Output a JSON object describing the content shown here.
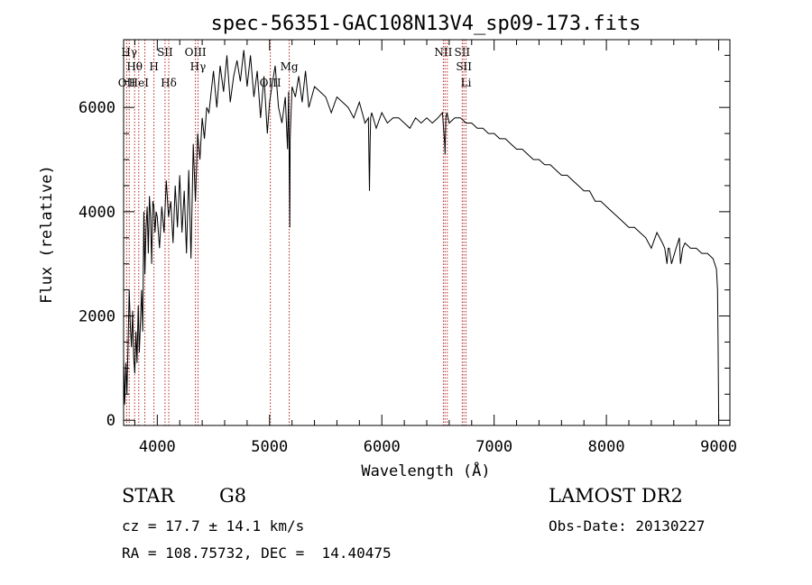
{
  "chart_data": {
    "type": "line",
    "title": "spec-56351-GAC108N13V4_sp09-173.fits",
    "xlabel": "Wavelength (Å)",
    "ylabel": "Flux (relative)",
    "xlim": [
      3700,
      9100
    ],
    "ylim": [
      -100,
      7300
    ],
    "xticks": [
      4000,
      5000,
      6000,
      7000,
      8000,
      9000
    ],
    "yticks": [
      0,
      2000,
      4000,
      6000
    ],
    "grid": false,
    "series": [
      {
        "x": [
          3700,
          3710,
          3720,
          3730,
          3740,
          3750,
          3760,
          3770,
          3780,
          3790,
          3800,
          3810,
          3820,
          3830,
          3840,
          3850,
          3860,
          3870,
          3880,
          3890,
          3900,
          3910,
          3920,
          3930,
          3940,
          3950,
          3960,
          3970,
          3980,
          3990,
          4000,
          4020,
          4040,
          4060,
          4080,
          4100,
          4120,
          4140,
          4160,
          4180,
          4200,
          4220,
          4240,
          4260,
          4280,
          4300,
          4320,
          4340,
          4360,
          4380,
          4400,
          4420,
          4440,
          4460,
          4480,
          4500,
          4530,
          4560,
          4590,
          4620,
          4650,
          4680,
          4710,
          4740,
          4770,
          4800,
          4830,
          4860,
          4890,
          4920,
          4950,
          4980,
          5000,
          5020,
          5050,
          5080,
          5110,
          5140,
          5160,
          5170,
          5180,
          5183,
          5190,
          5200,
          5230,
          5260,
          5290,
          5320,
          5350,
          5400,
          5450,
          5500,
          5550,
          5600,
          5650,
          5700,
          5750,
          5800,
          5850,
          5880,
          5890,
          5895,
          5900,
          5910,
          5950,
          6000,
          6050,
          6100,
          6150,
          6200,
          6250,
          6300,
          6350,
          6400,
          6450,
          6500,
          6540,
          6560,
          6563,
          6570,
          6580,
          6600,
          6650,
          6700,
          6750,
          6800,
          6850,
          6900,
          6950,
          7000,
          7050,
          7100,
          7150,
          7200,
          7250,
          7300,
          7350,
          7400,
          7450,
          7500,
          7550,
          7600,
          7650,
          7700,
          7750,
          7800,
          7850,
          7900,
          7950,
          8000,
          8050,
          8100,
          8150,
          8200,
          8250,
          8300,
          8350,
          8400,
          8450,
          8500,
          8520,
          8540,
          8550,
          8560,
          8580,
          8620,
          8650,
          8660,
          8680,
          8700,
          8750,
          8800,
          8850,
          8900,
          8950,
          8980,
          8990,
          8995,
          9000
        ],
        "y": [
          1200,
          300,
          1100,
          500,
          1500,
          2500,
          1800,
          1400,
          2100,
          1200,
          900,
          1700,
          1100,
          2200,
          1300,
          1900,
          2500,
          1700,
          4000,
          2800,
          3700,
          4100,
          3200,
          4300,
          3900,
          3000,
          4200,
          4100,
          3600,
          4000,
          3900,
          3300,
          4100,
          3600,
          4600,
          3900,
          4200,
          3400,
          4500,
          3700,
          4700,
          3600,
          4400,
          3200,
          4800,
          3100,
          5300,
          4200,
          5500,
          5000,
          5800,
          5400,
          6000,
          5900,
          6300,
          6700,
          6000,
          6800,
          6300,
          7000,
          6100,
          6600,
          6900,
          6500,
          7100,
          6400,
          7000,
          6200,
          6700,
          5800,
          6600,
          5500,
          6100,
          6400,
          6800,
          6000,
          5700,
          6200,
          5200,
          6300,
          3700,
          5400,
          5800,
          6400,
          6200,
          6600,
          6100,
          6700,
          6000,
          6400,
          6300,
          6200,
          5900,
          6200,
          6100,
          6000,
          5800,
          6100,
          5700,
          5800,
          4400,
          5300,
          5800,
          5900,
          5600,
          5900,
          5700,
          5800,
          5800,
          5700,
          5600,
          5800,
          5700,
          5800,
          5700,
          5800,
          5900,
          5300,
          5100,
          5800,
          5900,
          5700,
          5800,
          5800,
          5700,
          5700,
          5600,
          5600,
          5500,
          5500,
          5400,
          5400,
          5300,
          5200,
          5200,
          5100,
          5000,
          5000,
          4900,
          4900,
          4800,
          4700,
          4700,
          4600,
          4500,
          4400,
          4400,
          4200,
          4200,
          4100,
          4000,
          3900,
          3800,
          3700,
          3700,
          3600,
          3500,
          3300,
          3600,
          3400,
          3300,
          3000,
          3300,
          3300,
          3000,
          3300,
          3500,
          3000,
          3300,
          3400,
          3300,
          3300,
          3200,
          3200,
          3100,
          2900,
          2500,
          1500,
          0
        ]
      }
    ],
    "line_markers": [
      {
        "x": 3727,
        "label": "OII",
        "row": 3
      },
      {
        "x": 3750,
        "label": "Hγ",
        "row": 1
      },
      {
        "x": 3798,
        "label": "Hθ",
        "row": 2
      },
      {
        "x": 3835,
        "label": "HeI",
        "row": 3
      },
      {
        "x": 3889,
        "label": "",
        "row": 0
      },
      {
        "x": 3970,
        "label": "H",
        "row": 2
      },
      {
        "x": 4069,
        "label": "SII",
        "row": 1
      },
      {
        "x": 4102,
        "label": "Hδ",
        "row": 3
      },
      {
        "x": 4340,
        "label": "OIII",
        "row": 1
      },
      {
        "x": 4363,
        "label": "Hγ",
        "row": 2
      },
      {
        "x": 5007,
        "label": "OIII",
        "row": 3
      },
      {
        "x": 5175,
        "label": "Mg",
        "row": 2
      },
      {
        "x": 6548,
        "label": "NII",
        "row": 1
      },
      {
        "x": 6563,
        "label": "",
        "row": 0
      },
      {
        "x": 6583,
        "label": "",
        "row": 0
      },
      {
        "x": 6716,
        "label": "SII",
        "row": 1
      },
      {
        "x": 6731,
        "label": "SII",
        "row": 2
      },
      {
        "x": 6750,
        "label": "Li",
        "row": 3
      }
    ]
  },
  "info": {
    "class_label": "STAR",
    "subclass_label": "G8",
    "cz_text": "cz = 17.7 ± 14.1 km/s",
    "coords_text": "RA = 108.75732, DEC =  14.40475",
    "survey_text": "LAMOST DR2",
    "obsdate_text": "Obs-Date: 20130227"
  }
}
